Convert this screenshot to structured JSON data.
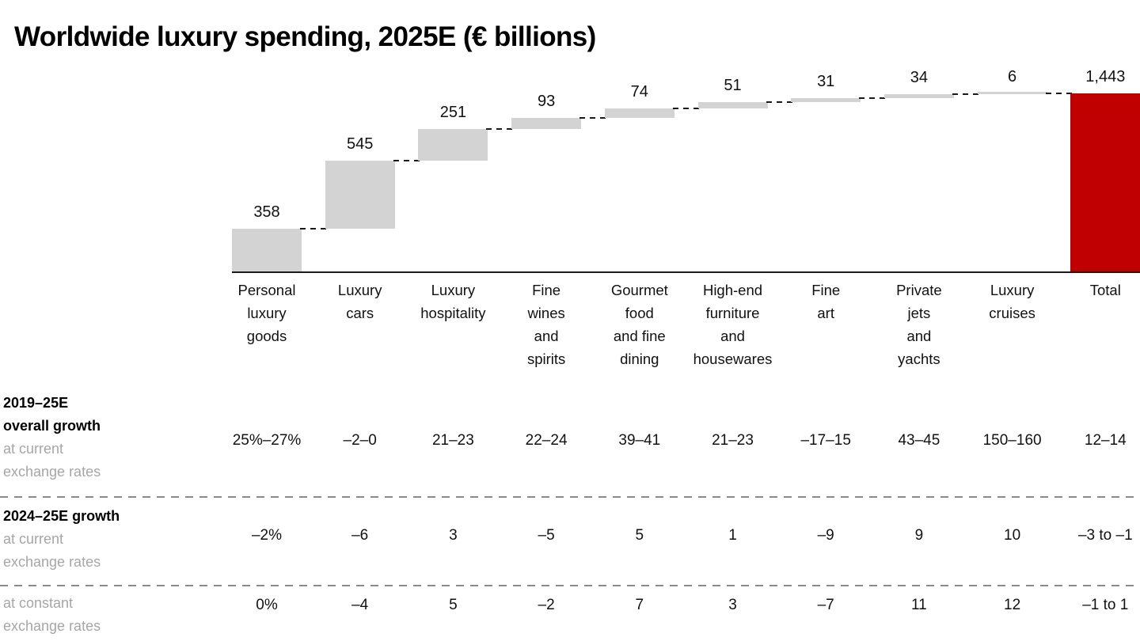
{
  "title": "Worldwide luxury spending, 2025E (€ billions)",
  "chart_data": {
    "type": "waterfall",
    "title": "Worldwide luxury spending, 2025E (€ billions)",
    "unit": "€ billions",
    "categories": [
      "Personal luxury goods",
      "Luxury cars",
      "Luxury hospitality",
      "Fine wines and spirits",
      "Gourmet food and fine dining",
      "High-end furniture and housewares",
      "Fine art",
      "Private jets and yachts",
      "Luxury cruises",
      "Total"
    ],
    "category_lines": [
      [
        "Personal",
        "luxury",
        "goods"
      ],
      [
        "Luxury",
        "cars"
      ],
      [
        "Luxury",
        "hospitality"
      ],
      [
        "Fine",
        "wines",
        "and",
        "spirits"
      ],
      [
        "Gourmet",
        "food",
        "and fine",
        "dining"
      ],
      [
        "High-end",
        "furniture",
        "and",
        "housewares"
      ],
      [
        "Fine",
        "art"
      ],
      [
        "Private",
        "jets",
        "and",
        "yachts"
      ],
      [
        "Luxury",
        "cruises"
      ],
      [
        "Total"
      ]
    ],
    "values": [
      358,
      545,
      251,
      93,
      74,
      51,
      31,
      34,
      6,
      1443
    ],
    "value_labels": [
      "358",
      "545",
      "251",
      "93",
      "74",
      "51",
      "31",
      "34",
      "6",
      "1,443"
    ],
    "total_index": 9,
    "bar_color": "#d3d3d3",
    "total_color": "#c00000",
    "ylim": [
      0,
      1443
    ],
    "grid": false,
    "legend": false
  },
  "table": {
    "rows": [
      {
        "bold_lines": [
          "2019–25E",
          "overall growth"
        ],
        "gray_lines": [
          "at current",
          "exchange rates"
        ],
        "values": [
          "25%–27%",
          "–2–0",
          "21–23",
          "22–24",
          "39–41",
          "21–23",
          "–17–15",
          "43–45",
          "150–160",
          "12–14"
        ]
      },
      {
        "bold_lines": [
          "2024–25E growth"
        ],
        "gray_lines": [
          "at current",
          "exchange rates"
        ],
        "values": [
          "–2%",
          "–6",
          "3",
          "–5",
          "5",
          "1",
          "–9",
          "9",
          "10",
          "–3 to –1"
        ]
      },
      {
        "bold_lines": [],
        "gray_lines": [
          "at constant",
          "exchange rates"
        ],
        "values": [
          "0%",
          "–4",
          "5",
          "–2",
          "7",
          "3",
          "–7",
          "11",
          "12",
          "–1 to 1"
        ]
      }
    ]
  }
}
